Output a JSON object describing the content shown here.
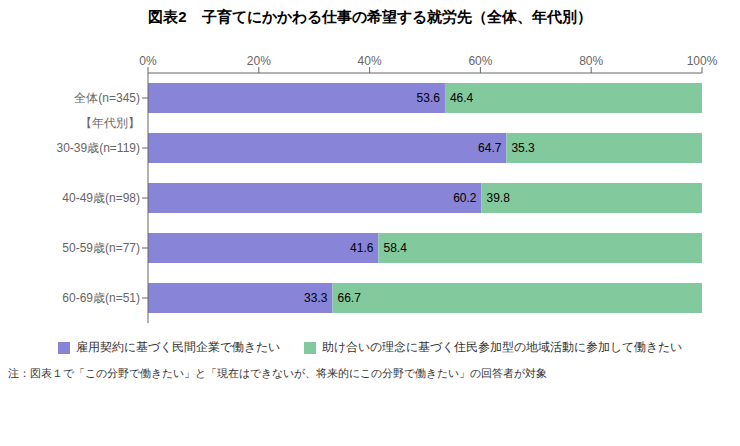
{
  "chart_data": {
    "type": "bar",
    "orientation": "horizontal",
    "stacked": true,
    "data_labels": true,
    "title": "図表2　子育てにかかわる仕事の希望する就労先（全体、年代別）",
    "categories": [
      "全体(n=345)",
      "30-39歳(n=119)",
      "40-49歳(n=98)",
      "50-59歳(n=77)",
      "60-69歳(n=51)"
    ],
    "series": [
      {
        "name": "雇用契約に基づく民間企業で働きたい",
        "color": "#8884d8",
        "values": [
          53.6,
          64.7,
          60.2,
          41.6,
          33.3
        ]
      },
      {
        "name": "助け合いの理念に基づく住民参加型の地域活動に参加して働きたい",
        "color": "#82ca9d",
        "values": [
          46.4,
          35.3,
          39.8,
          58.4,
          66.7
        ]
      }
    ],
    "xlim": [
      0,
      100
    ],
    "xticks": [
      {
        "value": 0,
        "label": "0%"
      },
      {
        "value": 20,
        "label": "20%"
      },
      {
        "value": 40,
        "label": "40%"
      },
      {
        "value": 60,
        "label": "60%"
      },
      {
        "value": 80,
        "label": "80%"
      },
      {
        "value": 100,
        "label": "100%"
      }
    ],
    "annotations": [
      "【年代別】",
      "注：図表１で「この分野で働きたい」と「現在はできないが、将来的にこの分野で働きたい」の回答者が対象"
    ],
    "legend": "bottom"
  }
}
